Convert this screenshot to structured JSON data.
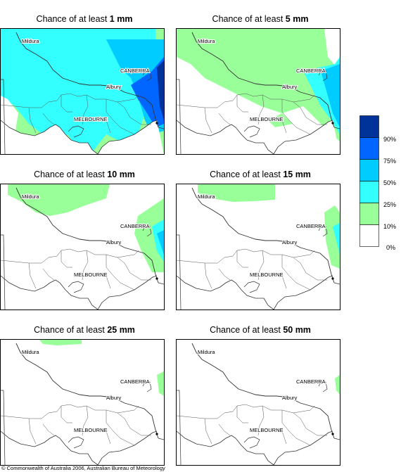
{
  "panels": [
    {
      "title_prefix": "Chance of at least ",
      "title_value": "1 mm",
      "labels": [
        "Mildura",
        "CANBERRA",
        "Albury",
        "MELBOURNE"
      ]
    },
    {
      "title_prefix": "Chance of at least ",
      "title_value": "5 mm",
      "labels": [
        "Mildura",
        "CANBERRA",
        "Albury",
        "MELBOURNE"
      ]
    },
    {
      "title_prefix": "Chance of at least ",
      "title_value": "10 mm",
      "labels": [
        "Mildura",
        "CANBERRA",
        "Albury",
        "MELBOURNE"
      ]
    },
    {
      "title_prefix": "Chance of at least ",
      "title_value": "15 mm",
      "labels": [
        "Mildura",
        "CANBERRA",
        "Albury",
        "MELBOURNE"
      ]
    },
    {
      "title_prefix": "Chance of at least ",
      "title_value": "25 mm",
      "labels": [
        "Mildura",
        "CANBERRA",
        "Albury",
        "MELBOURNE"
      ]
    },
    {
      "title_prefix": "Chance of at least ",
      "title_value": "50 mm",
      "labels": [
        "Mildura",
        "CANBERRA",
        "Albury",
        "MELBOURNE"
      ]
    }
  ],
  "legend": {
    "classes": [
      {
        "color": "#003399"
      },
      {
        "color": "#0066ff"
      },
      {
        "color": "#00ccff"
      },
      {
        "color": "#33ffff"
      },
      {
        "color": "#99ff99"
      },
      {
        "color": "#ffffff"
      }
    ],
    "labels": [
      "90%",
      "75%",
      "50%",
      "25%",
      "10%",
      "0%"
    ]
  },
  "copyright": "© Commonwealth of Australia 2006, Australian Bureau of Meteorology"
}
